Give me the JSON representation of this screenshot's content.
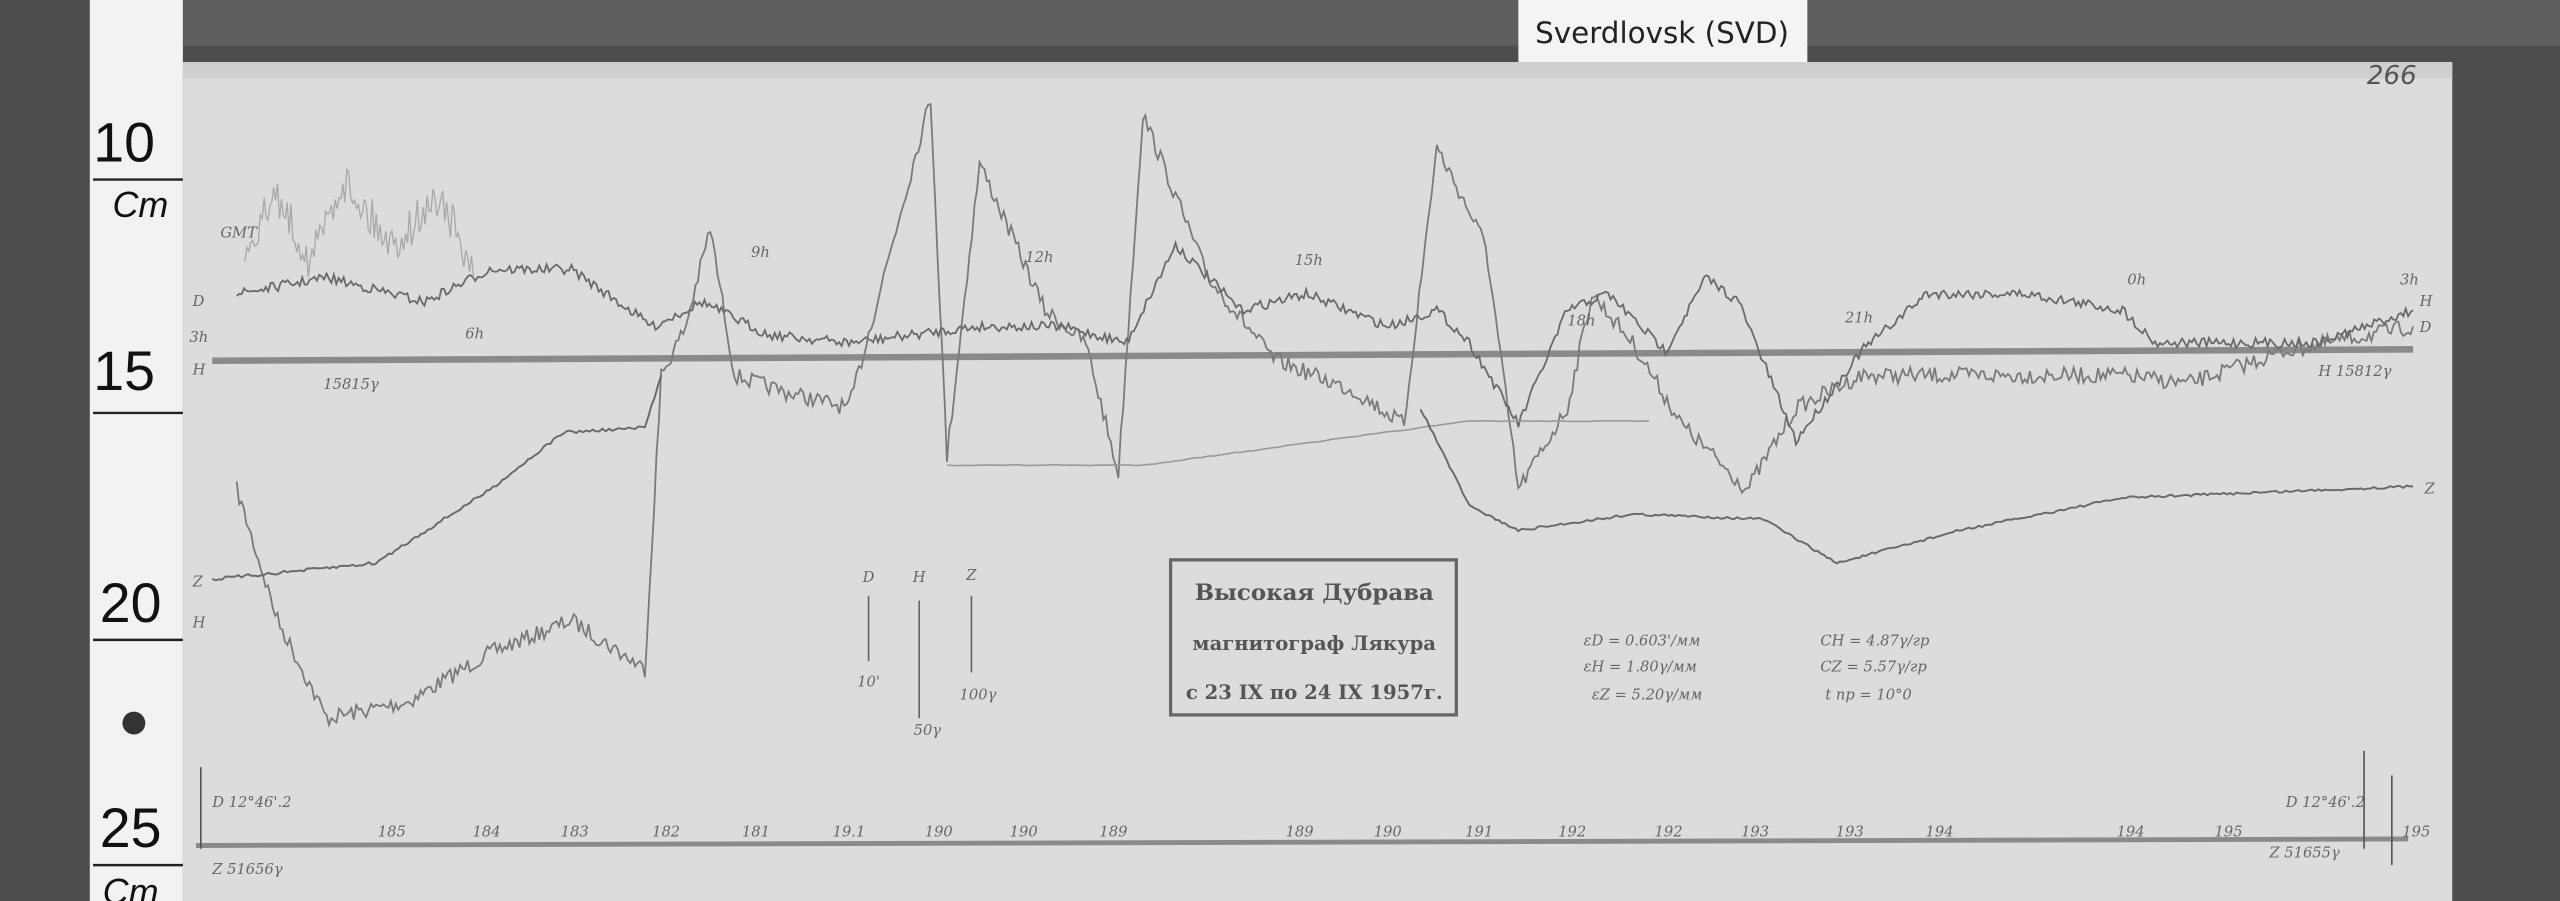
{
  "header": {
    "station_label": "Sverdlovsk (SVD)",
    "sheet_number": "266"
  },
  "ruler": {
    "labels": [
      "10",
      "Cm",
      "15",
      "20",
      "25",
      "Cm"
    ]
  },
  "record": {
    "time_label": "GMT",
    "left_labels": [
      "D",
      "3h",
      "H",
      "15815γ",
      "Z",
      "H"
    ],
    "right_labels": [
      "H",
      "D",
      "H 15812γ",
      "Z"
    ],
    "hour_labels": [
      "6h",
      "9h",
      "12h",
      "15h",
      "18h",
      "21h",
      "0h",
      "3h"
    ],
    "scale_bars": [
      {
        "name": "D",
        "label": "10'"
      },
      {
        "name": "H",
        "label": "50γ"
      },
      {
        "name": "Z",
        "label": "100γ"
      }
    ],
    "baselines": {
      "left_d": "D 12°46'.2",
      "left_z": "Z 51656γ",
      "right_d": "D 12°46'.2",
      "right_z": "Z 51655γ"
    },
    "temperatures": [
      "185",
      "184",
      "183",
      "182",
      "181",
      "19.1",
      "190",
      "190",
      "189",
      "189",
      "190",
      "191",
      "192",
      "192",
      "193",
      "193",
      "194",
      "194",
      "195",
      "195"
    ]
  },
  "stamp": {
    "lines": [
      "Высокая Дубрава",
      "магнитограф Лякура",
      "с 23 IX по 24 IX 1957г."
    ]
  },
  "constants": {
    "scales": [
      "εD = 0.603'/мм",
      "εH = 1.80γ/мм",
      "εZ = 5.20γ/мм"
    ],
    "coefficients": [
      "CH = 4.87γ/гр",
      "CZ = 5.57γ/гр",
      "t пр = 10°0"
    ]
  }
}
